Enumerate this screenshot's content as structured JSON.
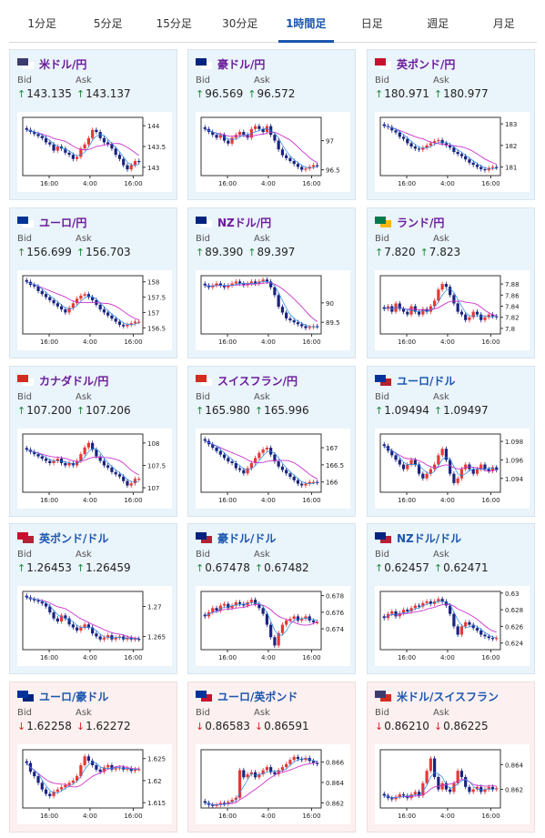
{
  "tabs": [
    {
      "label": "1分足",
      "active": false
    },
    {
      "label": "5分足",
      "active": false
    },
    {
      "label": "15分足",
      "active": false
    },
    {
      "label": "30分足",
      "active": false
    },
    {
      "label": "1時間足",
      "active": true
    },
    {
      "label": "日足",
      "active": false
    },
    {
      "label": "週足",
      "active": false
    },
    {
      "label": "月足",
      "active": false
    }
  ],
  "labels": {
    "bid": "Bid",
    "ask": "Ask"
  },
  "time_ticks": [
    "16:00",
    "4:00",
    "16:00"
  ],
  "colors": {
    "up_arrow": "#1b8a3a",
    "down_arrow": "#d22222",
    "bull": "#e53935",
    "bear": "#1a237e",
    "ma1": "#1e88e5",
    "ma2": "#cc33cc",
    "card_up_bg": "#eaf4fb",
    "card_down_bg": "#fdf0f0"
  },
  "pairs": [
    {
      "name": "米ドル/円",
      "flags": [
        "#3c3b6e",
        "#ffffff"
      ],
      "trend": "up",
      "bid": "143.135",
      "ask": "143.137",
      "y_ticks": [
        "144",
        "143.5",
        "143"
      ],
      "ylim": [
        142.8,
        144.2
      ],
      "closes": [
        143.9,
        143.85,
        143.8,
        143.75,
        143.7,
        143.6,
        143.55,
        143.4,
        143.5,
        143.45,
        143.35,
        143.3,
        143.2,
        143.25,
        143.45,
        143.55,
        143.7,
        143.9,
        143.85,
        143.7,
        143.6,
        143.55,
        143.45,
        143.3,
        143.2,
        143.05,
        142.95,
        143.05,
        143.15,
        143.13
      ]
    },
    {
      "name": "豪ドル/円",
      "flags": [
        "#00247d",
        "#ffffff"
      ],
      "trend": "up",
      "bid": "96.569",
      "ask": "96.572",
      "y_ticks": [
        "97",
        "96.5"
      ],
      "ylim": [
        96.4,
        97.4
      ],
      "closes": [
        97.2,
        97.15,
        97.1,
        97.05,
        97.1,
        97.0,
        96.95,
        97.05,
        97.1,
        97.15,
        97.1,
        97.05,
        97.2,
        97.25,
        97.2,
        97.15,
        97.25,
        97.1,
        97.0,
        96.85,
        96.75,
        96.7,
        96.65,
        96.6,
        96.55,
        96.5,
        96.52,
        96.55,
        96.58,
        96.57
      ]
    },
    {
      "name": "英ポンド/円",
      "flags": [
        "#c8102e",
        "#ffffff"
      ],
      "trend": "up",
      "bid": "180.971",
      "ask": "180.977",
      "y_ticks": [
        "183",
        "182",
        "181"
      ],
      "ylim": [
        180.6,
        183.3
      ],
      "closes": [
        182.9,
        182.85,
        182.7,
        182.6,
        182.4,
        182.3,
        182.1,
        181.95,
        181.85,
        181.8,
        181.9,
        182.0,
        182.1,
        182.2,
        182.25,
        182.1,
        182.0,
        181.9,
        181.7,
        181.6,
        181.5,
        181.35,
        181.2,
        181.1,
        181.0,
        180.9,
        180.85,
        180.95,
        181.0,
        180.97
      ]
    },
    {
      "name": "ユーロ/円",
      "flags": [
        "#003399",
        "#ffffff"
      ],
      "trend": "up",
      "bid": "156.699",
      "ask": "156.703",
      "y_ticks": [
        "158",
        "157.5",
        "157",
        "156.5"
      ],
      "ylim": [
        156.3,
        158.2
      ],
      "closes": [
        158.0,
        157.9,
        157.85,
        157.7,
        157.6,
        157.5,
        157.4,
        157.3,
        157.2,
        157.1,
        157.0,
        157.15,
        157.3,
        157.45,
        157.55,
        157.6,
        157.5,
        157.4,
        157.25,
        157.1,
        157.0,
        156.9,
        156.8,
        156.7,
        156.6,
        156.55,
        156.6,
        156.65,
        156.7,
        156.7
      ]
    },
    {
      "name": "NZドル/円",
      "flags": [
        "#00247d",
        "#ffffff"
      ],
      "trend": "up",
      "bid": "89.390",
      "ask": "89.397",
      "y_ticks": [
        "90",
        "89.5"
      ],
      "ylim": [
        89.2,
        90.7
      ],
      "closes": [
        90.45,
        90.4,
        90.45,
        90.5,
        90.45,
        90.4,
        90.45,
        90.5,
        90.55,
        90.5,
        90.45,
        90.5,
        90.55,
        90.5,
        90.55,
        90.6,
        90.55,
        90.4,
        90.2,
        89.9,
        89.75,
        89.6,
        89.55,
        89.5,
        89.45,
        89.4,
        89.35,
        89.38,
        89.4,
        89.39
      ]
    },
    {
      "name": "ランド/円",
      "flags": [
        "#007a4d",
        "#ffb612"
      ],
      "trend": "up",
      "bid": "7.820",
      "ask": "7.823",
      "y_ticks": [
        "7.88",
        "7.86",
        "7.84",
        "7.82",
        "7.8"
      ],
      "ylim": [
        7.79,
        7.895
      ],
      "closes": [
        7.835,
        7.84,
        7.83,
        7.845,
        7.835,
        7.83,
        7.825,
        7.84,
        7.83,
        7.825,
        7.835,
        7.83,
        7.84,
        7.85,
        7.87,
        7.88,
        7.875,
        7.86,
        7.845,
        7.83,
        7.825,
        7.815,
        7.82,
        7.83,
        7.825,
        7.815,
        7.82,
        7.825,
        7.822,
        7.82
      ]
    },
    {
      "name": "カナダドル/円",
      "flags": [
        "#d52b1e",
        "#ffffff"
      ],
      "trend": "up",
      "bid": "107.200",
      "ask": "107.206",
      "y_ticks": [
        "108",
        "107.5",
        "107"
      ],
      "ylim": [
        106.9,
        108.2
      ],
      "closes": [
        107.85,
        107.8,
        107.75,
        107.7,
        107.65,
        107.6,
        107.55,
        107.6,
        107.65,
        107.55,
        107.5,
        107.55,
        107.5,
        107.6,
        107.75,
        107.9,
        108.0,
        107.85,
        107.7,
        107.6,
        107.5,
        107.45,
        107.35,
        107.3,
        107.25,
        107.15,
        107.05,
        107.1,
        107.2,
        107.2
      ]
    },
    {
      "name": "スイスフラン/円",
      "flags": [
        "#d52b1e",
        "#ffffff"
      ],
      "trend": "up",
      "bid": "165.980",
      "ask": "165.996",
      "y_ticks": [
        "167",
        "166.5",
        "166"
      ],
      "ylim": [
        165.7,
        167.4
      ],
      "closes": [
        167.2,
        167.1,
        167.0,
        166.9,
        166.8,
        166.7,
        166.6,
        166.55,
        166.4,
        166.35,
        166.25,
        166.4,
        166.55,
        166.7,
        166.85,
        166.95,
        167.0,
        166.8,
        166.6,
        166.45,
        166.35,
        166.25,
        166.15,
        166.05,
        165.95,
        165.9,
        165.95,
        166.0,
        166.0,
        165.98
      ]
    },
    {
      "name": "ユーロ/ドル",
      "flags": [
        "#003399",
        "#b22234"
      ],
      "trend": "up",
      "bid": "1.09494",
      "ask": "1.09497",
      "y_ticks": [
        "1.098",
        "1.096",
        "1.094"
      ],
      "ylim": [
        1.0925,
        1.0988
      ],
      "closes": [
        1.0975,
        1.097,
        1.0965,
        1.096,
        1.0955,
        1.095,
        1.0955,
        1.096,
        1.0955,
        1.0945,
        1.094,
        1.0945,
        1.095,
        1.0955,
        1.0965,
        1.0972,
        1.096,
        1.0945,
        1.0935,
        1.094,
        1.095,
        1.0955,
        1.095,
        1.0945,
        1.095,
        1.0955,
        1.095,
        1.0948,
        1.0952,
        1.0949
      ]
    },
    {
      "name": "英ポンド/ドル",
      "flags": [
        "#c8102e",
        "#b22234"
      ],
      "trend": "up",
      "bid": "1.26453",
      "ask": "1.26459",
      "y_ticks": [
        "1.27",
        "1.265"
      ],
      "ylim": [
        1.2628,
        1.2725
      ],
      "closes": [
        1.2715,
        1.2712,
        1.271,
        1.2708,
        1.2705,
        1.27,
        1.269,
        1.268,
        1.2675,
        1.2685,
        1.268,
        1.267,
        1.2665,
        1.266,
        1.2665,
        1.267,
        1.2665,
        1.2655,
        1.265,
        1.2645,
        1.2648,
        1.2652,
        1.2645,
        1.2648,
        1.265,
        1.2645,
        1.2648,
        1.2645,
        1.2646,
        1.2645
      ]
    },
    {
      "name": "豪ドル/ドル",
      "flags": [
        "#00247d",
        "#b22234"
      ],
      "trend": "up",
      "bid": "0.67478",
      "ask": "0.67482",
      "y_ticks": [
        "0.678",
        "0.676",
        "0.674"
      ],
      "ylim": [
        0.6715,
        0.6785
      ],
      "closes": [
        0.6755,
        0.676,
        0.6765,
        0.6762,
        0.6768,
        0.677,
        0.6765,
        0.6768,
        0.6772,
        0.677,
        0.6768,
        0.6772,
        0.6775,
        0.677,
        0.6765,
        0.6758,
        0.6745,
        0.673,
        0.672,
        0.6735,
        0.6745,
        0.675,
        0.6752,
        0.6755,
        0.675,
        0.6752,
        0.6755,
        0.675,
        0.6748,
        0.6748
      ]
    },
    {
      "name": "NZドル/ドル",
      "flags": [
        "#00247d",
        "#b22234"
      ],
      "trend": "up",
      "bid": "0.62457",
      "ask": "0.62471",
      "y_ticks": [
        "0.63",
        "0.628",
        "0.626",
        "0.624"
      ],
      "ylim": [
        0.6232,
        0.6302
      ],
      "closes": [
        0.627,
        0.6275,
        0.6278,
        0.6272,
        0.6276,
        0.628,
        0.6278,
        0.6282,
        0.6285,
        0.6284,
        0.6288,
        0.629,
        0.6287,
        0.629,
        0.6293,
        0.629,
        0.6285,
        0.6275,
        0.626,
        0.625,
        0.626,
        0.6265,
        0.6262,
        0.6258,
        0.6255,
        0.625,
        0.6248,
        0.6246,
        0.6245,
        0.6246
      ]
    },
    {
      "name": "ユーロ/豪ドル",
      "flags": [
        "#003399",
        "#00247d"
      ],
      "trend": "down",
      "bid": "1.62258",
      "ask": "1.62272",
      "y_ticks": [
        "1.625",
        "1.62",
        "1.615"
      ],
      "ylim": [
        1.6138,
        1.627
      ],
      "closes": [
        1.624,
        1.622,
        1.621,
        1.6195,
        1.618,
        1.617,
        1.6165,
        1.6175,
        1.618,
        1.6185,
        1.619,
        1.6195,
        1.62,
        1.621,
        1.6235,
        1.6255,
        1.6245,
        1.6235,
        1.6225,
        1.622,
        1.623,
        1.6235,
        1.6225,
        1.6228,
        1.623,
        1.6225,
        1.6228,
        1.6222,
        1.6226,
        1.6226
      ]
    },
    {
      "name": "ユーロ/英ポンド",
      "flags": [
        "#003399",
        "#c8102e"
      ],
      "trend": "down",
      "bid": "0.86583",
      "ask": "0.86591",
      "y_ticks": [
        "0.866",
        "0.864",
        "0.862"
      ],
      "ylim": [
        0.8615,
        0.8672
      ],
      "closes": [
        0.862,
        0.8618,
        0.8617,
        0.8618,
        0.862,
        0.8619,
        0.8621,
        0.8623,
        0.8625,
        0.8652,
        0.8645,
        0.8648,
        0.865,
        0.8645,
        0.8648,
        0.8652,
        0.8655,
        0.865,
        0.8648,
        0.8652,
        0.8655,
        0.8658,
        0.8662,
        0.8665,
        0.8663,
        0.8662,
        0.8664,
        0.8661,
        0.8659,
        0.8658
      ]
    },
    {
      "name": "米ドル/スイスフラン",
      "flags": [
        "#3c3b6e",
        "#d52b1e"
      ],
      "trend": "down",
      "bid": "0.86210",
      "ask": "0.86225",
      "y_ticks": [
        "0.864",
        "0.862"
      ],
      "ylim": [
        0.8605,
        0.8652
      ],
      "closes": [
        0.8615,
        0.8613,
        0.8612,
        0.8614,
        0.8616,
        0.8615,
        0.8613,
        0.8616,
        0.8618,
        0.8615,
        0.8625,
        0.8635,
        0.8645,
        0.863,
        0.862,
        0.8625,
        0.862,
        0.8618,
        0.8625,
        0.8635,
        0.863,
        0.8622,
        0.8618,
        0.862,
        0.8622,
        0.8618,
        0.862,
        0.8622,
        0.862,
        0.8621
      ]
    }
  ]
}
